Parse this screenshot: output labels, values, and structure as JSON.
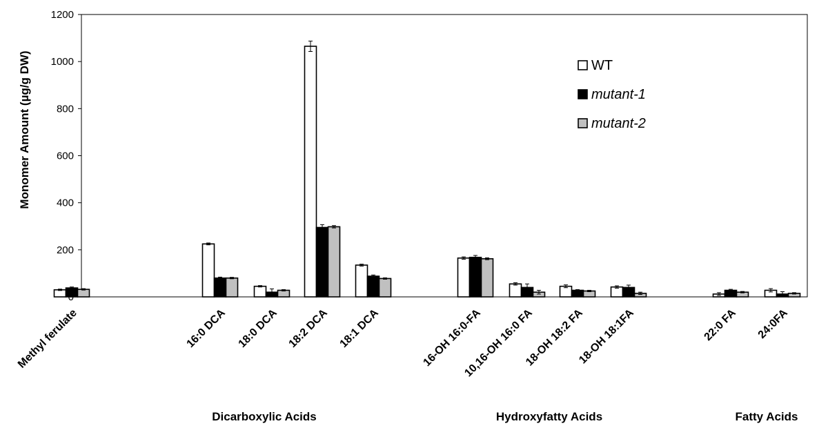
{
  "chart_data": {
    "type": "bar",
    "title": "",
    "xlabel": "",
    "ylabel": "Monomer Amount (µg/g DW)",
    "ylim": [
      0,
      1200
    ],
    "yticks": [
      0,
      200,
      400,
      600,
      800,
      1000,
      1200
    ],
    "grid": false,
    "legend_position": "top-right",
    "categories": [
      "Methyl ferulate",
      "16:0 DCA",
      "18:0 DCA",
      "18:2 DCA",
      "18:1 DCA",
      "16-OH 16:0-FA",
      "10,16-OH 16:0 FA",
      "18-OH 18:2 FA",
      "18-OH 18:1FA",
      "22:0 FA",
      "24:0FA"
    ],
    "groups": [
      {
        "label": "Dicarboxylic Acids",
        "categories": [
          "16:0 DCA",
          "18:0 DCA",
          "18:2 DCA",
          "18:1 DCA"
        ]
      },
      {
        "label": "Hydroxyfatty Acids",
        "categories": [
          "16-OH 16:0-FA",
          "10,16-OH 16:0 FA",
          "18-OH 18:2 FA",
          "18-OH 18:1FA"
        ]
      },
      {
        "label": "Fatty Acids",
        "categories": [
          "22:0 FA",
          "24:0FA"
        ]
      }
    ],
    "series": [
      {
        "name": "WT",
        "italic": false,
        "color": "#ffffff",
        "values": [
          30,
          225,
          45,
          1065,
          135,
          165,
          55,
          45,
          42,
          12,
          28
        ],
        "errors": [
          3,
          4,
          3,
          22,
          4,
          5,
          5,
          6,
          5,
          6,
          7
        ]
      },
      {
        "name": "mutant-1",
        "italic": true,
        "color": "#000000",
        "values": [
          38,
          80,
          20,
          295,
          88,
          168,
          40,
          28,
          40,
          28,
          12
        ],
        "errors": [
          4,
          4,
          14,
          12,
          5,
          8,
          15,
          3,
          10,
          4,
          10
        ]
      },
      {
        "name": "mutant-2",
        "italic": true,
        "color": "#c0c0c0",
        "values": [
          32,
          80,
          28,
          298,
          78,
          162,
          20,
          25,
          15,
          20,
          15
        ],
        "errors": [
          3,
          3,
          3,
          5,
          3,
          4,
          8,
          3,
          5,
          3,
          3
        ]
      }
    ]
  }
}
